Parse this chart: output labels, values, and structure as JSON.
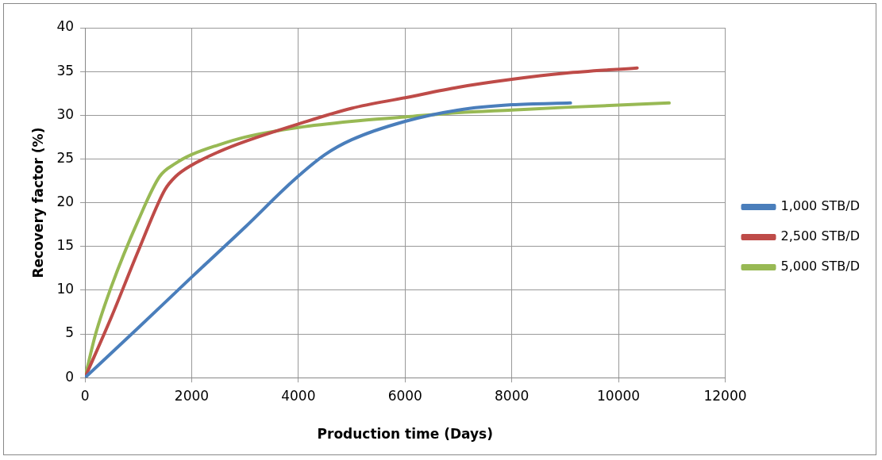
{
  "chart_data": {
    "type": "line",
    "xlabel": "Production time (Days)",
    "ylabel": "Recovery factor (%)",
    "xlim": [
      0,
      12000
    ],
    "xticks": [
      0,
      2000,
      4000,
      6000,
      8000,
      10000,
      12000
    ],
    "ylim": [
      0,
      40
    ],
    "yticks": [
      0,
      5,
      10,
      15,
      20,
      25,
      30,
      35,
      40
    ],
    "grid": true,
    "legend": "right",
    "marker": "none",
    "line_style": "solid",
    "series": [
      {
        "name": "1,000 STB/D",
        "color": "#4a7ebb",
        "x": [
          0,
          1000,
          2000,
          3000,
          3900,
          4500,
          5000,
          6000,
          7000,
          8000,
          9100
        ],
        "values": [
          0,
          5.7,
          11.5,
          17.2,
          22.5,
          25.5,
          27.2,
          29.3,
          30.6,
          31.2,
          31.4
        ]
      },
      {
        "name": "2,500 STB/D",
        "color": "#be4b48",
        "x": [
          0,
          500,
          1000,
          1500,
          1700,
          2000,
          2500,
          3000,
          4000,
          5000,
          6000,
          7000,
          8000,
          9000,
          10350
        ],
        "values": [
          0,
          7,
          14.5,
          21.5,
          23,
          24.3,
          25.8,
          27,
          29,
          30.8,
          32,
          33.2,
          34.1,
          34.8,
          35.4
        ]
      },
      {
        "name": "5,000 STB/D",
        "color": "#98b954",
        "x": [
          0,
          200,
          500,
          1000,
          1400,
          1700,
          2000,
          2500,
          3000,
          4000,
          5000,
          6000,
          7000,
          8000,
          9000,
          10950
        ],
        "values": [
          0,
          5,
          10.5,
          18,
          23,
          24.5,
          25.5,
          26.6,
          27.5,
          28.6,
          29.3,
          29.8,
          30.3,
          30.6,
          30.9,
          31.4
        ]
      }
    ]
  }
}
